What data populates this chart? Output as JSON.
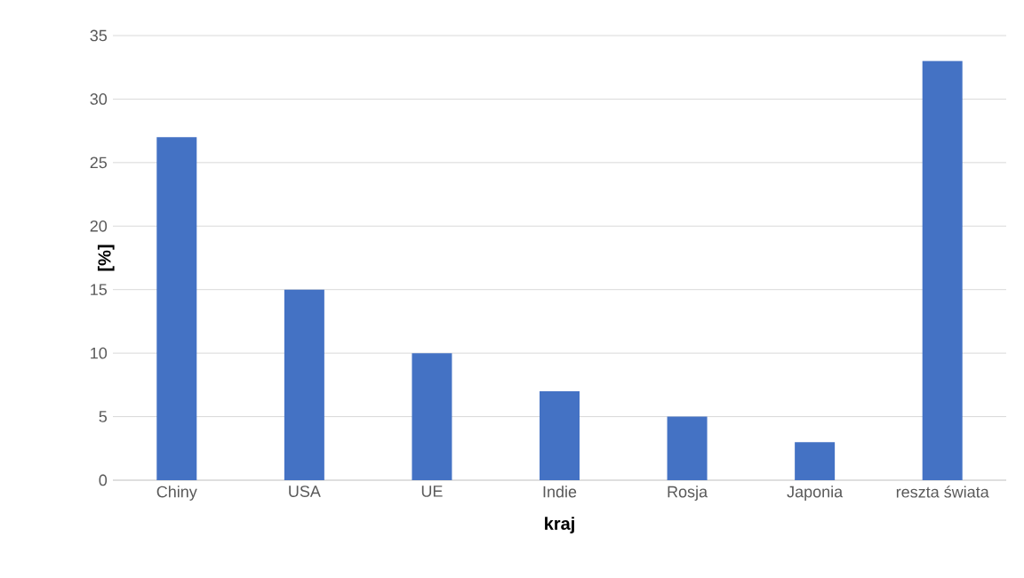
{
  "chart_data": {
    "type": "bar",
    "xlabel": "kraj",
    "ylabel": "[%]",
    "categories": [
      "Chiny",
      "USA",
      "UE",
      "Indie",
      "Rosja",
      "Japonia",
      "reszta świata"
    ],
    "values": [
      27,
      15,
      10,
      7,
      5,
      3,
      33
    ],
    "color": "#4472c4",
    "ylim": [
      0,
      35
    ],
    "yticks": [
      0,
      5,
      10,
      15,
      20,
      25,
      30,
      35
    ],
    "grid": "y"
  }
}
